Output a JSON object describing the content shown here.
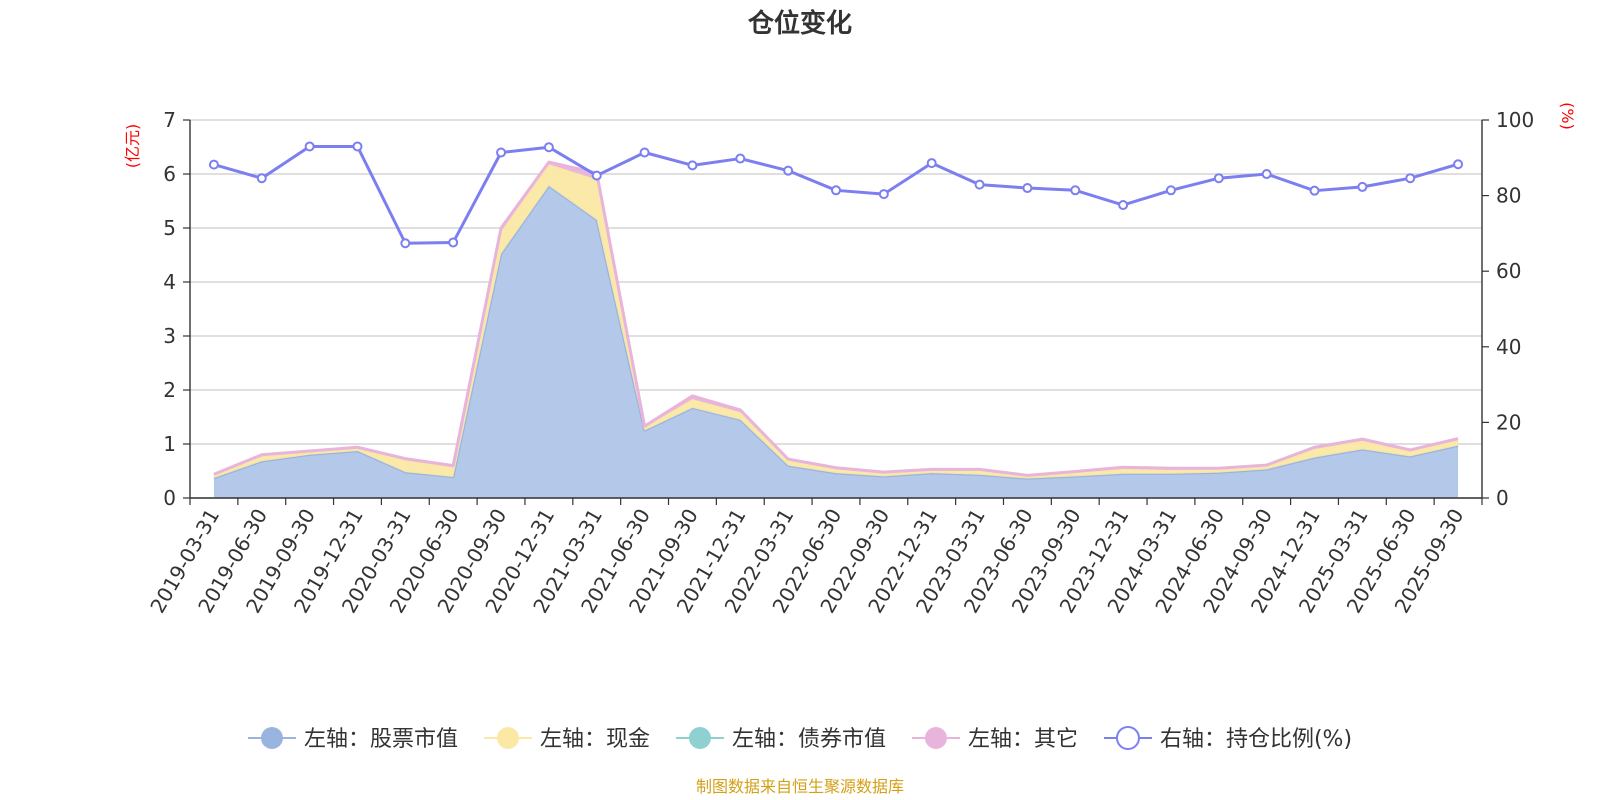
{
  "title": "仓位变化",
  "source": "制图数据来自恒生聚源数据库",
  "colors": {
    "stock": "#9ab4e0",
    "stock_fill": "#b4c8ea",
    "cash": "#fae8a4",
    "bond": "#8fd1d1",
    "other": "#e8b4dc",
    "ratio": "#7b7ff0",
    "grid": "#cccccc",
    "axis": "#333333",
    "unit": "#ff0000",
    "source": "#d4a017"
  },
  "chart_data": {
    "type": "area",
    "categories": [
      "2019-03-31",
      "2019-06-30",
      "2019-09-30",
      "2019-12-31",
      "2020-03-31",
      "2020-06-30",
      "2020-09-30",
      "2020-12-31",
      "2021-03-31",
      "2021-06-30",
      "2021-09-30",
      "2021-12-31",
      "2022-03-31",
      "2022-06-30",
      "2022-09-30",
      "2022-12-31",
      "2023-03-31",
      "2023-06-30",
      "2023-09-30",
      "2023-12-31",
      "2024-03-31",
      "2024-06-30",
      "2024-09-30",
      "2024-12-31",
      "2025-03-31",
      "2025-06-30",
      "2025-09-30"
    ],
    "left_axis": {
      "unit": "(亿元)",
      "ylim": [
        0,
        7
      ],
      "ticks": [
        "0",
        "1",
        "2",
        "3",
        "4",
        "5",
        "6",
        "7"
      ]
    },
    "right_axis": {
      "unit": "(%)",
      "ylim": [
        0,
        100
      ],
      "ticks": [
        "0",
        "20",
        "40",
        "60",
        "80",
        "100"
      ]
    },
    "series": [
      {
        "name": "左轴：股票市值",
        "key": "stock",
        "axis": "left",
        "stacked": true,
        "values": [
          0.37,
          0.68,
          0.8,
          0.87,
          0.48,
          0.39,
          4.52,
          5.78,
          5.15,
          1.25,
          1.67,
          1.45,
          0.6,
          0.46,
          0.4,
          0.46,
          0.43,
          0.36,
          0.4,
          0.45,
          0.45,
          0.47,
          0.53,
          0.75,
          0.9,
          0.77,
          0.97
        ]
      },
      {
        "name": "左轴：现金",
        "key": "cash",
        "axis": "left",
        "stacked": true,
        "values": [
          0.05,
          0.1,
          0.05,
          0.05,
          0.22,
          0.18,
          0.42,
          0.4,
          0.75,
          0.06,
          0.16,
          0.14,
          0.1,
          0.08,
          0.06,
          0.05,
          0.08,
          0.04,
          0.07,
          0.09,
          0.07,
          0.06,
          0.06,
          0.16,
          0.16,
          0.1,
          0.1
        ]
      },
      {
        "name": "左轴：债券市值",
        "key": "bond",
        "axis": "left",
        "stacked": true,
        "values": [
          0,
          0,
          0,
          0,
          0,
          0,
          0,
          0,
          0,
          0,
          0,
          0,
          0,
          0,
          0,
          0,
          0,
          0,
          0,
          0,
          0,
          0,
          0,
          0,
          0,
          0,
          0
        ]
      },
      {
        "name": "左轴：其它",
        "key": "other",
        "axis": "left",
        "stacked": true,
        "values": [
          0.02,
          0.02,
          0.02,
          0.02,
          0.03,
          0.03,
          0.06,
          0.04,
          0.12,
          0.02,
          0.06,
          0.04,
          0.02,
          0.02,
          0.02,
          0.02,
          0.02,
          0.02,
          0.02,
          0.03,
          0.03,
          0.02,
          0.02,
          0.03,
          0.03,
          0.02,
          0.03
        ]
      },
      {
        "name": "右轴：持仓比例(%)",
        "key": "ratio",
        "axis": "right",
        "stacked": false,
        "values": [
          88.2,
          84.6,
          93.0,
          93.0,
          67.4,
          67.6,
          91.4,
          92.8,
          85.3,
          91.4,
          88.0,
          89.8,
          86.6,
          81.4,
          80.4,
          88.6,
          82.9,
          82.0,
          81.4,
          77.5,
          81.4,
          84.6,
          85.7,
          81.3,
          82.3,
          84.6,
          88.3
        ]
      }
    ],
    "legend_position": "bottom-center",
    "grid": true
  }
}
